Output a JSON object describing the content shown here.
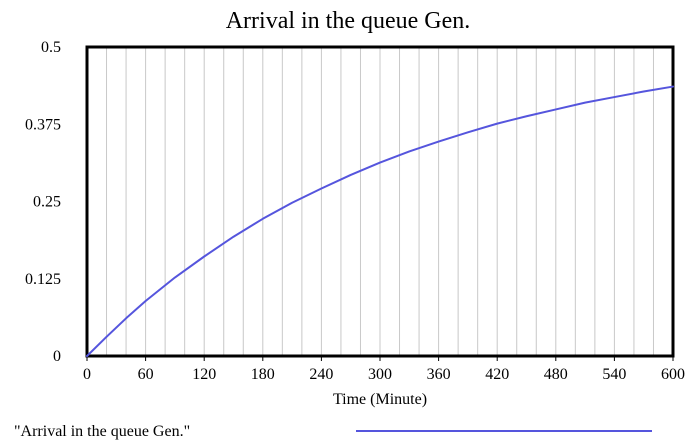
{
  "chart_data": {
    "type": "line",
    "title": "Arrival in the queue Gen.",
    "xlabel": "Time (Minute)",
    "ylabel": "",
    "xlim": [
      0,
      600
    ],
    "ylim": [
      0,
      0.5
    ],
    "x_ticks": [
      0,
      60,
      120,
      180,
      240,
      300,
      360,
      420,
      480,
      540,
      600
    ],
    "x_tick_labels": [
      "0",
      "60",
      "120",
      "180",
      "240",
      "300",
      "360",
      "420",
      "480",
      "540",
      "600"
    ],
    "y_ticks": [
      0,
      0.125,
      0.25,
      0.375,
      0.5
    ],
    "y_tick_labels": [
      "0",
      "0.125",
      "0.25",
      "0.375",
      "0.5"
    ],
    "grid": "vertical",
    "legend": "bottom",
    "series": [
      {
        "name": "\"Arrival in the queue Gen.\"",
        "color": "#5555dd",
        "x": [
          0,
          20,
          40,
          60,
          90,
          120,
          150,
          180,
          210,
          240,
          270,
          300,
          330,
          360,
          390,
          420,
          450,
          480,
          510,
          540,
          570,
          600
        ],
        "y": [
          0,
          0.031,
          0.061,
          0.089,
          0.127,
          0.161,
          0.193,
          0.222,
          0.248,
          0.271,
          0.293,
          0.313,
          0.331,
          0.347,
          0.362,
          0.376,
          0.388,
          0.399,
          0.41,
          0.419,
          0.428,
          0.436
        ]
      }
    ]
  }
}
